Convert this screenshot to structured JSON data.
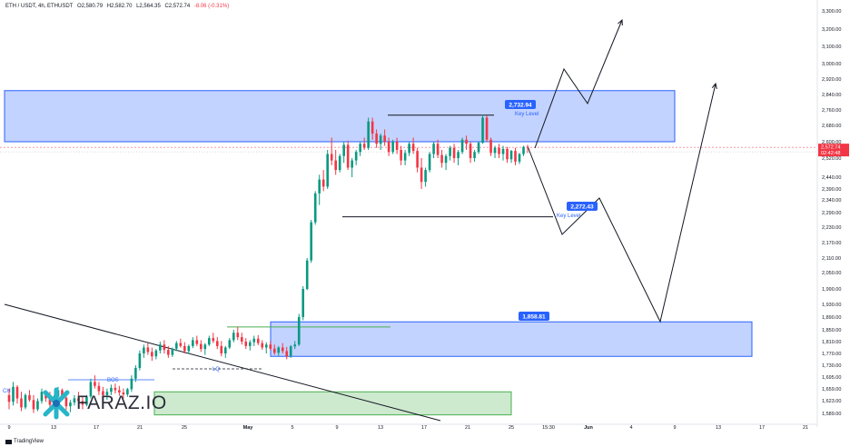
{
  "header": {
    "symbol": "ETH / USDT, 4h, ETHUSDT",
    "open": "O2,580.79",
    "high": "H2,582.70",
    "low": "L2,564.35",
    "close": "C2,572.74",
    "change": "-8.06 (-0.31%)"
  },
  "brand": {
    "logo_text": "FARAZ.IO",
    "footer": "TradingView"
  },
  "ch_tag": "CH",
  "colors": {
    "zone_blue": "#2962ff",
    "zone_green": "#4caf50",
    "candle_up": "#089981",
    "candle_down": "#f23645",
    "price_tag": "#f23645",
    "label_blue": "#2962ff"
  },
  "chart_data": {
    "type": "candlestick",
    "title": "",
    "y_axis": {
      "ticks": [
        3300,
        3200,
        3100,
        3000,
        2920,
        2840,
        2760,
        2680,
        2600,
        2520,
        2440,
        2390,
        2340,
        2290,
        2230,
        2170,
        2110,
        2050,
        1990,
        1930,
        1890,
        1850,
        1810,
        1770,
        1730,
        1695,
        1659,
        1623,
        1589
      ],
      "tick_labels": [
        "3,300.00",
        "3,200.00",
        "3,100.00",
        "3,000.00",
        "2,920.00",
        "2,840.00",
        "2,760.00",
        "2,680.00",
        "2,600.00",
        "2,520.00",
        "2,440.00",
        "2,390.00",
        "2,340.00",
        "2,290.00",
        "2,230.00",
        "2,170.00",
        "2,110.00",
        "2,050.00",
        "1,990.00",
        "1,930.00",
        "1,890.00",
        "1,850.00",
        "1,810.00",
        "1,770.00",
        "1,730.00",
        "1,695.00",
        "1,659.00",
        "1,623.00",
        "1,589.00"
      ]
    },
    "x_axis": {
      "tick_labels": [
        "9",
        "13",
        "17",
        "21",
        "25",
        "May",
        "5",
        "9",
        "13",
        "17",
        "21",
        "25",
        "15:30",
        "Jun",
        "4",
        "9",
        "13",
        "17",
        "21"
      ]
    },
    "current_price": {
      "value": 2572.74,
      "label": "2,572.74",
      "countdown": "02:42:48"
    },
    "zones": [
      {
        "name": "upper-supply-zone",
        "color": "blue",
        "top": 2860,
        "bottom": 2600,
        "from": "9",
        "to": "near Jun"
      },
      {
        "name": "lower-demand-zone",
        "color": "blue",
        "top": 1875,
        "bottom": 1760,
        "from": "~28 Apr",
        "to": "~14 Jun"
      },
      {
        "name": "bottom-green-zone",
        "color": "green",
        "top": 1650,
        "bottom": 1585,
        "from": "~20 Apr",
        "to": "~24 May"
      }
    ],
    "levels": [
      {
        "label": "2,732.94",
        "value": 2732.94,
        "note": "Key Level"
      },
      {
        "label": "2,272.43",
        "value": 2272.43,
        "note": "Key Level"
      },
      {
        "label": "1,858.81",
        "value": 1858.81,
        "note": ""
      }
    ],
    "annotations": [
      "BOS",
      "LQ",
      "Key Level",
      "Key Level"
    ],
    "projections": [
      {
        "name": "bullish-path",
        "points": [
          [
            2572,
            "25 May"
          ],
          [
            3000,
            "~27 May"
          ],
          [
            2780,
            "~30 May"
          ],
          [
            3250,
            "~2 Jun"
          ]
        ]
      },
      {
        "name": "bearish-path",
        "points": [
          [
            2572,
            "25 May"
          ],
          [
            2210,
            "~30 May"
          ],
          [
            2340,
            "~1 Jun"
          ],
          [
            1870,
            "~8 Jun"
          ],
          [
            2840,
            "~11 Jun"
          ]
        ]
      }
    ],
    "candles": [
      [
        1640,
        1660,
        1600,
        1620
      ],
      [
        1620,
        1680,
        1610,
        1665
      ],
      [
        1665,
        1670,
        1615,
        1630
      ],
      [
        1630,
        1650,
        1595,
        1605
      ],
      [
        1605,
        1645,
        1600,
        1640
      ],
      [
        1640,
        1655,
        1620,
        1625
      ],
      [
        1625,
        1640,
        1590,
        1600
      ],
      [
        1600,
        1630,
        1595,
        1622
      ],
      [
        1622,
        1660,
        1615,
        1650
      ],
      [
        1650,
        1655,
        1620,
        1630
      ],
      [
        1630,
        1650,
        1600,
        1612
      ],
      [
        1612,
        1640,
        1605,
        1635
      ],
      [
        1635,
        1665,
        1630,
        1655
      ],
      [
        1655,
        1660,
        1625,
        1632
      ],
      [
        1632,
        1645,
        1598,
        1608
      ],
      [
        1608,
        1625,
        1592,
        1618
      ],
      [
        1618,
        1640,
        1610,
        1630
      ],
      [
        1630,
        1650,
        1615,
        1622
      ],
      [
        1622,
        1635,
        1600,
        1612
      ],
      [
        1612,
        1640,
        1608,
        1636
      ],
      [
        1636,
        1690,
        1630,
        1680
      ],
      [
        1680,
        1700,
        1660,
        1668
      ],
      [
        1668,
        1680,
        1640,
        1652
      ],
      [
        1652,
        1665,
        1630,
        1640
      ],
      [
        1640,
        1660,
        1625,
        1650
      ],
      [
        1650,
        1672,
        1640,
        1662
      ],
      [
        1662,
        1675,
        1645,
        1655
      ],
      [
        1655,
        1668,
        1638,
        1648
      ],
      [
        1648,
        1660,
        1630,
        1642
      ],
      [
        1642,
        1662,
        1635,
        1658
      ],
      [
        1658,
        1700,
        1650,
        1690
      ],
      [
        1690,
        1730,
        1680,
        1722
      ],
      [
        1722,
        1780,
        1715,
        1770
      ],
      [
        1770,
        1800,
        1755,
        1790
      ],
      [
        1790,
        1805,
        1765,
        1775
      ],
      [
        1775,
        1790,
        1745,
        1760
      ],
      [
        1760,
        1785,
        1750,
        1780
      ],
      [
        1780,
        1810,
        1770,
        1800
      ],
      [
        1800,
        1815,
        1770,
        1782
      ],
      [
        1782,
        1795,
        1755,
        1765
      ],
      [
        1765,
        1790,
        1758,
        1786
      ],
      [
        1786,
        1812,
        1778,
        1805
      ],
      [
        1805,
        1820,
        1790,
        1795
      ],
      [
        1795,
        1808,
        1770,
        1778
      ],
      [
        1778,
        1800,
        1768,
        1795
      ],
      [
        1795,
        1825,
        1788,
        1815
      ],
      [
        1815,
        1830,
        1795,
        1802
      ],
      [
        1802,
        1815,
        1775,
        1785
      ],
      [
        1785,
        1805,
        1765,
        1800
      ],
      [
        1800,
        1830,
        1795,
        1822
      ],
      [
        1822,
        1840,
        1805,
        1812
      ],
      [
        1812,
        1825,
        1785,
        1795
      ],
      [
        1795,
        1812,
        1760,
        1770
      ],
      [
        1770,
        1795,
        1755,
        1790
      ],
      [
        1790,
        1822,
        1785,
        1815
      ],
      [
        1815,
        1850,
        1808,
        1840
      ],
      [
        1840,
        1860,
        1815,
        1825
      ],
      [
        1825,
        1840,
        1800,
        1810
      ],
      [
        1810,
        1822,
        1785,
        1795
      ],
      [
        1795,
        1815,
        1780,
        1808
      ],
      [
        1808,
        1830,
        1795,
        1820
      ],
      [
        1820,
        1832,
        1798,
        1805
      ],
      [
        1805,
        1815,
        1782,
        1790
      ],
      [
        1790,
        1808,
        1770,
        1800
      ],
      [
        1800,
        1812,
        1780,
        1786
      ],
      [
        1786,
        1800,
        1765,
        1772
      ],
      [
        1772,
        1795,
        1762,
        1790
      ],
      [
        1790,
        1805,
        1770,
        1778
      ],
      [
        1778,
        1792,
        1750,
        1760
      ],
      [
        1760,
        1798,
        1755,
        1794
      ],
      [
        1794,
        1812,
        1785,
        1800
      ],
      [
        1800,
        1900,
        1795,
        1890
      ],
      [
        1890,
        2000,
        1880,
        1990
      ],
      [
        1990,
        2110,
        1985,
        2100
      ],
      [
        2100,
        2260,
        2090,
        2250
      ],
      [
        2250,
        2380,
        2240,
        2370
      ],
      [
        2370,
        2450,
        2320,
        2430
      ],
      [
        2430,
        2470,
        2380,
        2400
      ],
      [
        2400,
        2560,
        2390,
        2540
      ],
      [
        2540,
        2620,
        2490,
        2510
      ],
      [
        2510,
        2560,
        2450,
        2470
      ],
      [
        2470,
        2540,
        2460,
        2530
      ],
      [
        2530,
        2600,
        2500,
        2585
      ],
      [
        2585,
        2605,
        2470,
        2480
      ],
      [
        2480,
        2520,
        2440,
        2510
      ],
      [
        2510,
        2560,
        2490,
        2550
      ],
      [
        2550,
        2600,
        2530,
        2590
      ],
      [
        2590,
        2620,
        2560,
        2570
      ],
      [
        2570,
        2720,
        2560,
        2700
      ],
      [
        2700,
        2720,
        2610,
        2640
      ],
      [
        2640,
        2660,
        2570,
        2590
      ],
      [
        2590,
        2640,
        2560,
        2630
      ],
      [
        2630,
        2660,
        2580,
        2600
      ],
      [
        2600,
        2620,
        2530,
        2550
      ],
      [
        2550,
        2610,
        2540,
        2600
      ],
      [
        2600,
        2620,
        2540,
        2560
      ],
      [
        2560,
        2580,
        2490,
        2510
      ],
      [
        2510,
        2560,
        2490,
        2545
      ],
      [
        2545,
        2600,
        2530,
        2590
      ],
      [
        2590,
        2620,
        2540,
        2555
      ],
      [
        2555,
        2570,
        2460,
        2480
      ],
      [
        2480,
        2520,
        2390,
        2420
      ],
      [
        2420,
        2480,
        2400,
        2470
      ],
      [
        2470,
        2550,
        2460,
        2540
      ],
      [
        2540,
        2600,
        2520,
        2590
      ],
      [
        2590,
        2610,
        2520,
        2535
      ],
      [
        2535,
        2560,
        2480,
        2500
      ],
      [
        2500,
        2540,
        2470,
        2530
      ],
      [
        2530,
        2580,
        2510,
        2570
      ],
      [
        2570,
        2590,
        2500,
        2520
      ],
      [
        2520,
        2560,
        2490,
        2550
      ],
      [
        2550,
        2620,
        2540,
        2610
      ],
      [
        2610,
        2630,
        2560,
        2590
      ],
      [
        2590,
        2600,
        2500,
        2520
      ],
      [
        2520,
        2560,
        2505,
        2550
      ],
      [
        2550,
        2600,
        2540,
        2595
      ],
      [
        2595,
        2735,
        2590,
        2720
      ],
      [
        2720,
        2730,
        2600,
        2610
      ],
      [
        2610,
        2620,
        2530,
        2545
      ],
      [
        2545,
        2580,
        2520,
        2570
      ],
      [
        2570,
        2590,
        2520,
        2540
      ],
      [
        2540,
        2580,
        2510,
        2565
      ],
      [
        2565,
        2575,
        2500,
        2515
      ],
      [
        2515,
        2560,
        2500,
        2555
      ],
      [
        2555,
        2570,
        2490,
        2505
      ],
      [
        2505,
        2545,
        2495,
        2540
      ],
      [
        2540,
        2580,
        2530,
        2575
      ],
      [
        2575,
        2585,
        2545,
        2572.74
      ]
    ]
  }
}
